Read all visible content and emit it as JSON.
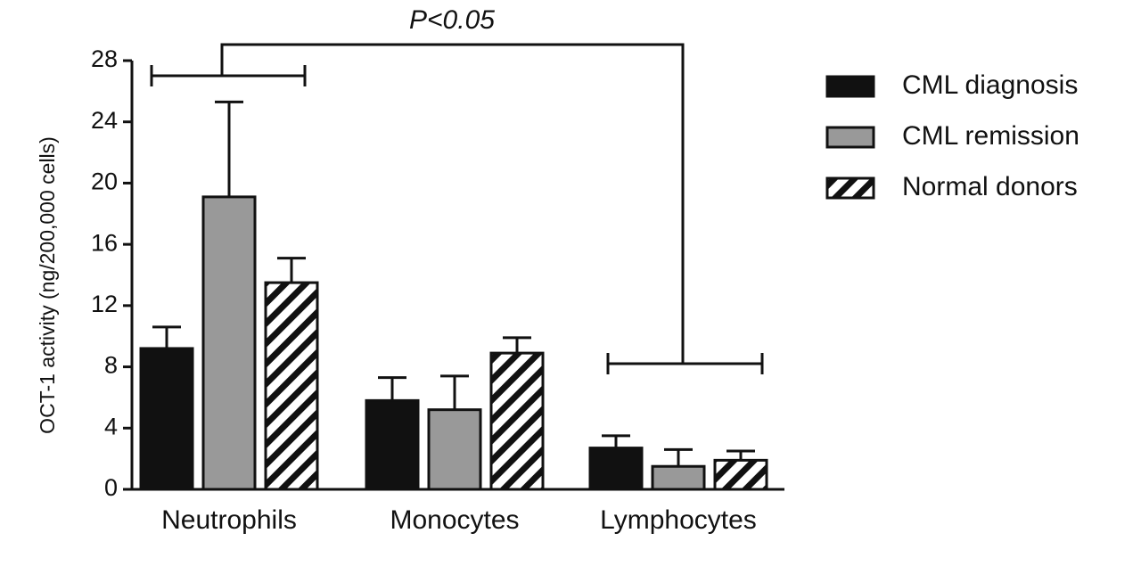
{
  "chart_data": {
    "type": "bar",
    "y_label": "OCT-1 activity (ng/200,000 cells)",
    "annotation": "P<0.05",
    "categories": [
      "Neutrophils",
      "Monocytes",
      "Lymphocytes"
    ],
    "series": [
      {
        "name": "CML diagnosis",
        "color": "#111111",
        "values": [
          9.2,
          5.8,
          2.7
        ],
        "errors": [
          1.4,
          1.5,
          0.8
        ]
      },
      {
        "name": "CML remission",
        "color": "#999999",
        "values": [
          19.1,
          5.2,
          1.5
        ],
        "errors": [
          6.2,
          2.2,
          1.1
        ]
      },
      {
        "name": "Normal donors",
        "color": "#ffffff",
        "hatch": true,
        "values": [
          13.5,
          8.9,
          1.9
        ],
        "errors": [
          1.6,
          1.0,
          0.6
        ]
      }
    ],
    "ylim": [
      0,
      28
    ],
    "yticks": [
      0,
      4,
      8,
      12,
      16,
      20,
      24,
      28
    ],
    "legend": "right"
  }
}
